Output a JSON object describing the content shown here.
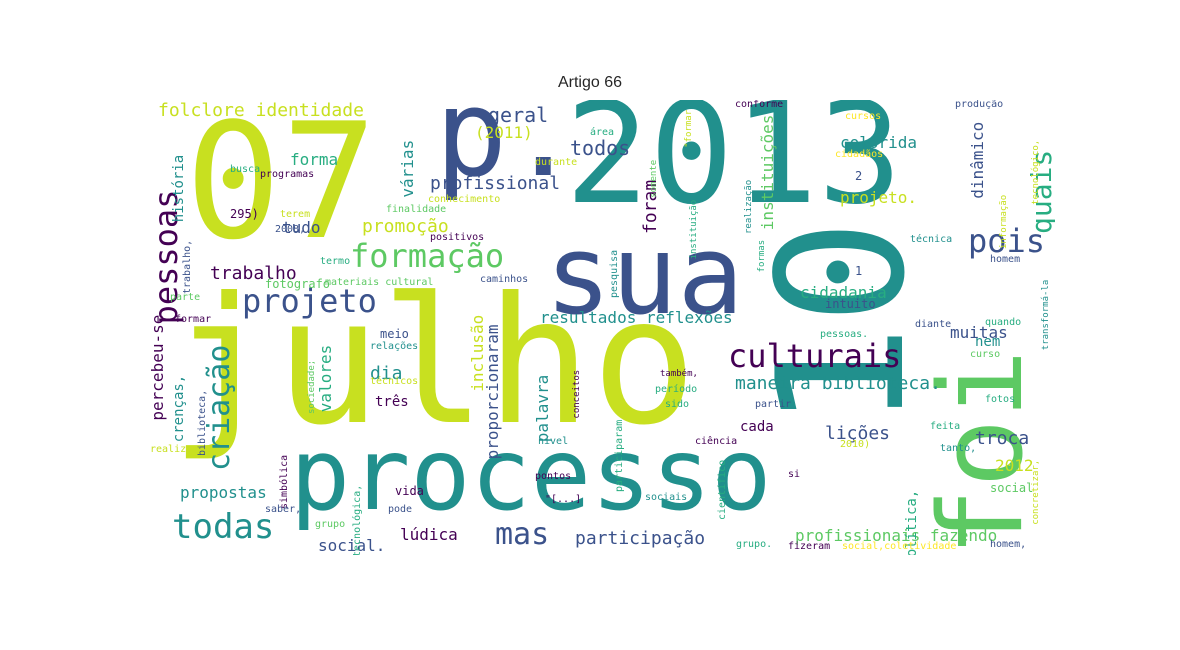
{
  "title": "Artigo 66",
  "colors": {
    "background": "#ffffff",
    "palette": [
      "#440154",
      "#3b528b",
      "#21908d",
      "#27ad81",
      "#5dc963",
      "#c8e020",
      "#fde725"
    ]
  },
  "words": [
    "07",
    "julho",
    "p.",
    "2013",
    "sua",
    "foi",
    "10",
    "processo",
    "formação",
    "pessoas",
    "projeto",
    "culturais",
    "pois",
    "quais",
    "criação",
    "todas",
    "mas",
    "folclore identidade",
    "(2011)",
    "geral",
    "todos",
    "profissional",
    "várias",
    "tudo",
    "forma",
    "história",
    "promoção",
    "trabalho",
    "foram",
    "instituições",
    "colorida",
    "dinâmico",
    "projeto.",
    "cidadania",
    "muitas",
    "resultados reflexões",
    "proporcionaram",
    "dia",
    "inclusão",
    "palavra",
    "maneira biblioteca.",
    "lições",
    "troca",
    "2012",
    "cada",
    "três",
    "valores",
    "crenças,",
    "percebeu-se",
    "propostas",
    "social.",
    "lúdica",
    "participação",
    "profissionais fazendo",
    "política,",
    "nem",
    "intuito",
    "1",
    "2",
    "295)",
    "2008,",
    "programas",
    "busca",
    "finalidade",
    "conhecimento",
    "durante",
    "área",
    "somente",
    "\"formar",
    "cursos",
    "cidadãos",
    "realização",
    "instituição",
    "conforme",
    "produção",
    "informação",
    "tecnológico,",
    "técnica",
    "homem",
    "caminhos",
    "materiais cultural",
    "fotógrafo",
    "termo",
    "parte",
    "formar",
    "relações",
    "meio",
    "técnicos",
    "sociedade;",
    "biblioteca,",
    "realizar",
    "simbólica",
    "grupo",
    "tecnológica,",
    "pode",
    "vida",
    "saber,",
    "pontos",
    "\"[...]",
    "sociais",
    "nível",
    "ciência",
    "conceitos",
    "participaram",
    "período",
    "também,",
    "sido",
    "partir",
    "pessoas.",
    "diante",
    "quando",
    "curso",
    "feita",
    "fotos",
    "tanto,",
    "2010)",
    "si",
    "social",
    "concretizar,",
    "científico",
    "grupo.",
    "fizeram",
    "social,coletividade",
    "homem,",
    "transformá-la",
    "positivos",
    "pesquisa",
    "formas",
    "terem",
    "trabalho,"
  ]
}
